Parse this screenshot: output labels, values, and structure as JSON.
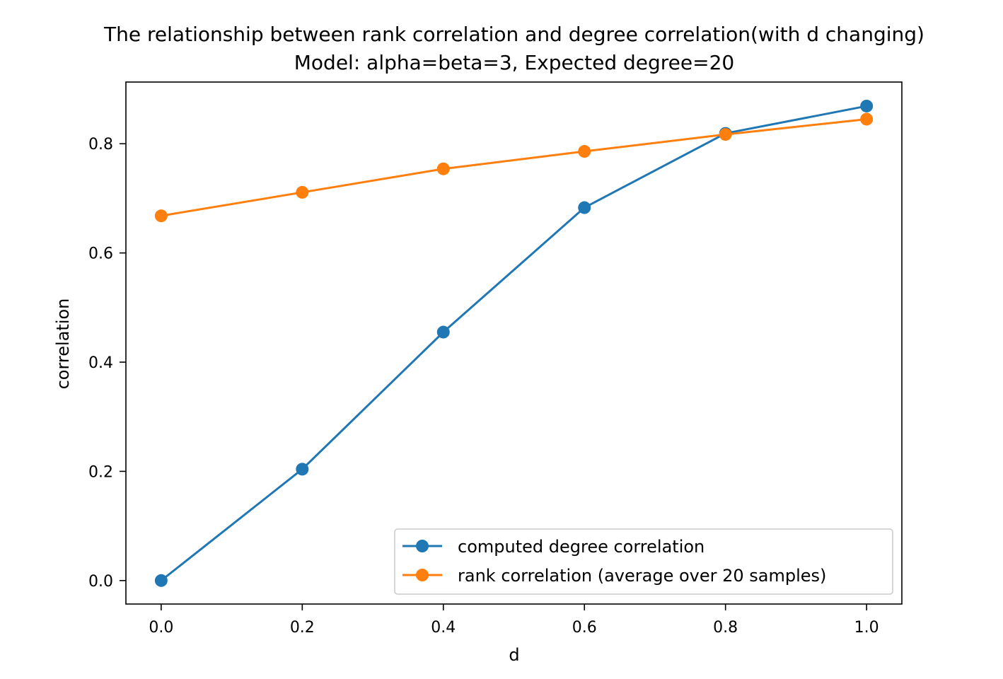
{
  "chart_data": {
    "type": "line",
    "title": "The relationship between rank correlation and degree correlation(with d changing)",
    "subtitle": "Model: alpha=beta=3, Expected degree=20",
    "xlabel": "d",
    "ylabel": "correlation",
    "x": [
      0.0,
      0.2,
      0.4,
      0.6,
      0.8,
      1.0
    ],
    "xlim": [
      -0.05,
      1.05
    ],
    "ylim": [
      -0.043,
      0.913
    ],
    "xticks": [
      "0.0",
      "0.2",
      "0.4",
      "0.6",
      "0.8",
      "1.0"
    ],
    "yticks": [
      "0.0",
      "0.2",
      "0.4",
      "0.6",
      "0.8"
    ],
    "grid": false,
    "legend_position": "lower-right",
    "series": [
      {
        "name": "computed degree correlation",
        "color": "#1f77b4",
        "marker": "circle",
        "values": [
          0.0,
          0.204,
          0.455,
          0.683,
          0.819,
          0.869
        ]
      },
      {
        "name": "rank correlation (average over 20 samples)",
        "color": "#ff7f0e",
        "marker": "circle",
        "values": [
          0.668,
          0.711,
          0.754,
          0.786,
          0.817,
          0.845
        ]
      }
    ]
  }
}
